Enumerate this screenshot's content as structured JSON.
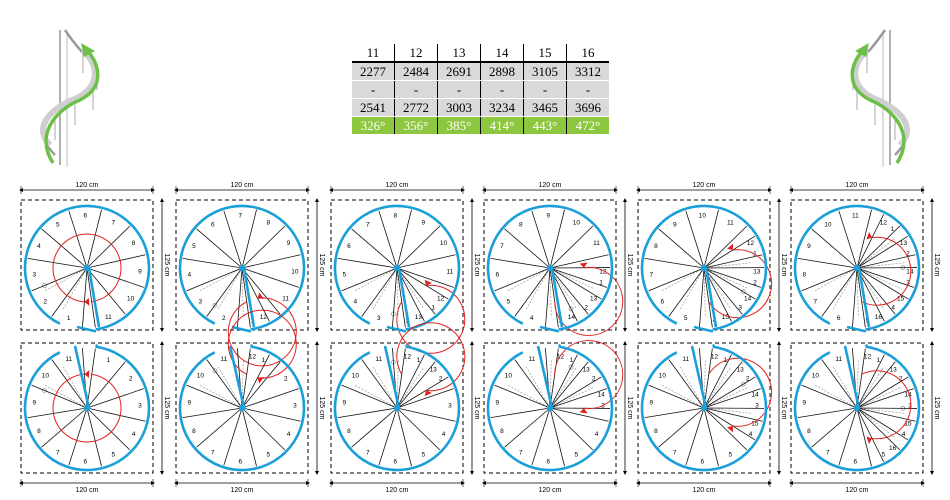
{
  "spec_table": {
    "header": [
      "11",
      "12",
      "13",
      "14",
      "15",
      "16"
    ],
    "rows": [
      [
        "2277",
        "2484",
        "2691",
        "2898",
        "3105",
        "3312"
      ],
      [
        "-",
        "-",
        "-",
        "-",
        "-",
        "-"
      ],
      [
        "2541",
        "2772",
        "3003",
        "3234",
        "3465",
        "3696"
      ]
    ],
    "degrees": [
      "326°",
      "356°",
      "385°",
      "414°",
      "443°",
      "472°"
    ]
  },
  "dimensions": {
    "width": "120 cm",
    "depth": "125 cm"
  },
  "step_counts": [
    11,
    12,
    13,
    14,
    15,
    16
  ],
  "colors": {
    "outline": "#1a9fd8",
    "walkline": "#e02020",
    "arrow": "#e02020",
    "extra_steps": "#999999",
    "steps": "#111111",
    "degree_row": "#8dc63f",
    "table_rows": "#d9d9d9",
    "staircase_arrow": "#6cc04a"
  },
  "icons": [
    "spiral-staircase-left-icon",
    "spiral-staircase-right-icon"
  ]
}
